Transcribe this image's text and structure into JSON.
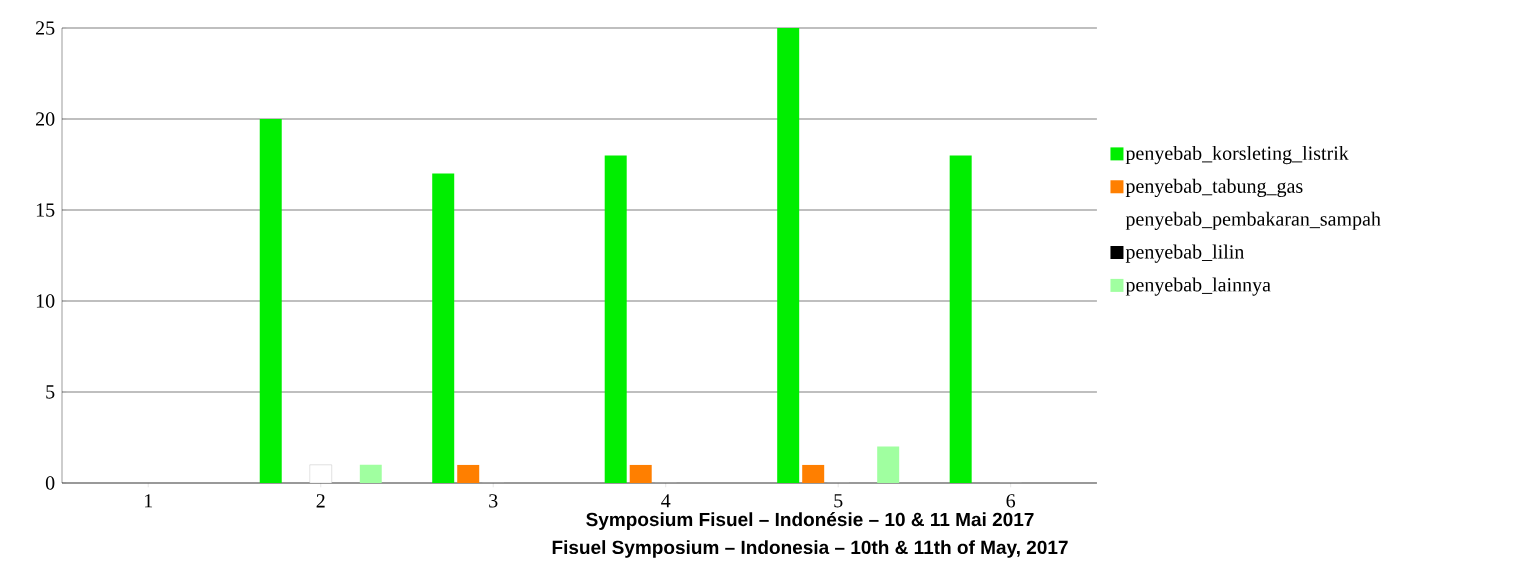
{
  "chart_data": {
    "type": "bar",
    "categories": [
      "1",
      "2",
      "3",
      "4",
      "5",
      "6"
    ],
    "series": [
      {
        "name": "penyebab_korsleting_listrik",
        "color": "#00ee00",
        "values": [
          null,
          20,
          17,
          18,
          25,
          18
        ]
      },
      {
        "name": "penyebab_tabung_gas",
        "color": "#ff7f00",
        "values": [
          null,
          0,
          1,
          1,
          1,
          0
        ]
      },
      {
        "name": "penyebab_pembakaran_sampah",
        "color": "#ffffff",
        "values": [
          null,
          1,
          0,
          0,
          0,
          0
        ]
      },
      {
        "name": "penyebab_lilin",
        "color": "#000000",
        "values": [
          null,
          0,
          0,
          0,
          0,
          0
        ]
      },
      {
        "name": "penyebab_lainnya",
        "color": "#a0ffa0",
        "values": [
          null,
          1,
          0,
          0,
          2,
          0
        ]
      }
    ],
    "ylim": [
      0,
      25
    ],
    "yticks": [
      0,
      5,
      10,
      15,
      20,
      25
    ],
    "grid": "y",
    "legend": "right",
    "annotations": [
      "Symposium Fisuel – Indonésie – 10 & 11 Mai 2017",
      "Fisuel Symposium – Indonesia – 10th & 11th of May, 2017"
    ]
  }
}
